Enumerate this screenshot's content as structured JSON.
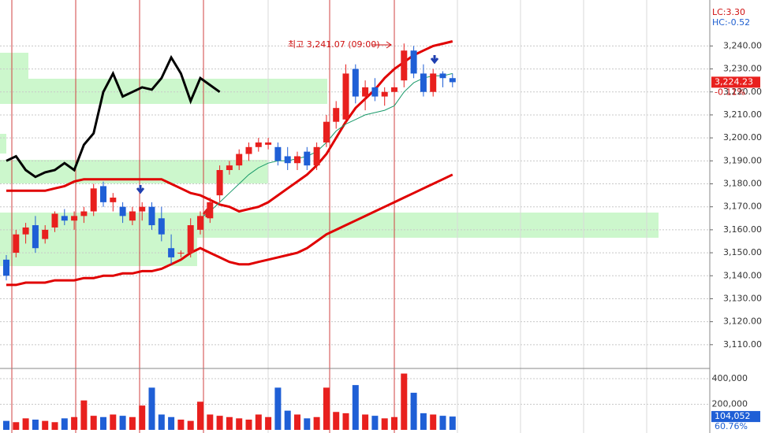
{
  "chart_data": {
    "type": "candlestick",
    "annotation": "최고 3,241.07 (09:00)",
    "lc_label": "LC:3.30",
    "hc_label": "HC:-0.52",
    "last_price": {
      "value": 3224.23,
      "label": "3,224.23"
    },
    "change_label": "-0.11%",
    "up_color": "#e8201e",
    "down_color": "#1f5fd6",
    "grid": true,
    "ylim": [
      3100,
      3260
    ],
    "yticks": [
      {
        "value": 3240,
        "label": "3,240.00"
      },
      {
        "value": 3230,
        "label": "3,230.00"
      },
      {
        "value": 3220,
        "label": "3,220.00"
      },
      {
        "value": 3210,
        "label": "3,210.00"
      },
      {
        "value": 3200,
        "label": "3,200.00"
      },
      {
        "value": 3190,
        "label": "3,190.00"
      },
      {
        "value": 3180,
        "label": "3,180.00"
      },
      {
        "value": 3170,
        "label": "3,170.00"
      },
      {
        "value": 3160,
        "label": "3,160.00"
      },
      {
        "value": 3150,
        "label": "3,150.00"
      },
      {
        "value": 3140,
        "label": "3,140.00"
      },
      {
        "value": 3130,
        "label": "3,130.00"
      },
      {
        "value": 3120,
        "label": "3,120.00"
      },
      {
        "value": 3110,
        "label": "3,110.00"
      }
    ],
    "open": [
      3147,
      3150,
      3158,
      3162,
      3156,
      3161,
      3166,
      3164,
      3166,
      3168,
      3179,
      3172,
      3170,
      3164,
      3168,
      3170,
      3165,
      3152,
      3150,
      3150,
      3160,
      3165,
      3175,
      3186,
      3188,
      3193,
      3196,
      3197,
      3196,
      3192,
      3189,
      3194,
      3188,
      3198,
      3207,
      3208,
      3230,
      3218,
      3222,
      3218,
      3220,
      3225,
      3238,
      3228,
      3220,
      3228,
      3226
    ],
    "high": [
      3149,
      3160,
      3163,
      3166,
      3162,
      3168,
      3169,
      3168,
      3170,
      3180,
      3181,
      3176,
      3172,
      3170,
      3172,
      3172,
      3170,
      3158,
      3151,
      3165,
      3168,
      3174,
      3188,
      3190,
      3195,
      3198,
      3200,
      3200,
      3198,
      3196,
      3194,
      3196,
      3198,
      3210,
      3216,
      3232,
      3232,
      3225,
      3226,
      3222,
      3224,
      3241.07,
      3240,
      3232,
      3230,
      3229,
      3228
    ],
    "low": [
      3138,
      3148,
      3154,
      3150,
      3154,
      3159,
      3162,
      3160,
      3163,
      3166,
      3170,
      3168,
      3163,
      3162,
      3164,
      3160,
      3155,
      3145,
      3148,
      3148,
      3158,
      3163,
      3172,
      3184,
      3186,
      3190,
      3194,
      3195,
      3188,
      3186,
      3186,
      3186,
      3186,
      3196,
      3204,
      3206,
      3215,
      3212,
      3216,
      3214,
      3218,
      3222,
      3226,
      3218,
      3218,
      3222,
      3222
    ],
    "close": [
      3140,
      3158,
      3161,
      3152,
      3160,
      3167,
      3164,
      3166,
      3168,
      3178,
      3172,
      3174,
      3166,
      3168,
      3170,
      3162,
      3158,
      3148,
      3150,
      3162,
      3166,
      3172,
      3186,
      3188,
      3193,
      3196,
      3198,
      3198,
      3190,
      3189,
      3192,
      3188,
      3196,
      3207,
      3213,
      3228,
      3218,
      3222,
      3218,
      3220,
      3222,
      3238,
      3228,
      3220,
      3228,
      3226,
      3224.23
    ],
    "lines": [
      {
        "color": "#e00000",
        "width": 3,
        "values": [
          3177,
          3177,
          3177,
          3177,
          3177,
          3178,
          3179,
          3181,
          3182,
          3182,
          3182,
          3182,
          3182,
          3182,
          3182,
          3182,
          3182,
          3180,
          3178,
          3176,
          3175,
          3173,
          3171,
          3170,
          3168,
          3169,
          3170,
          3172,
          3175,
          3178,
          3181,
          3184,
          3188,
          3193,
          3200,
          3207,
          3213,
          3217,
          3221,
          3226,
          3230,
          3233,
          3236,
          3238,
          3240,
          3241,
          3242
        ]
      },
      {
        "color": "#e00000",
        "width": 3,
        "values": [
          3136,
          3136,
          3137,
          3137,
          3137,
          3138,
          3138,
          3138,
          3139,
          3139,
          3140,
          3140,
          3141,
          3141,
          3142,
          3142,
          3143,
          3145,
          3147,
          3150,
          3152,
          3150,
          3148,
          3146,
          3145,
          3145,
          3146,
          3147,
          3148,
          3149,
          3150,
          3152,
          3155,
          3158,
          3160,
          3162,
          3164,
          3166,
          3168,
          3170,
          3172,
          3174,
          3176,
          3178,
          3180,
          3182,
          3184
        ]
      },
      {
        "color": "#000000",
        "width": 3,
        "values": [
          3190,
          3192,
          3186,
          3183,
          3185,
          3186,
          3189,
          3186,
          3197,
          3202,
          3220,
          3228,
          3218,
          3220,
          3222,
          3221,
          3226,
          3235,
          3228,
          3216,
          3226,
          3223,
          3220,
          null,
          null,
          null,
          null,
          null,
          null,
          null,
          null,
          null,
          null,
          null,
          null,
          null,
          null,
          null,
          null,
          null,
          null,
          null,
          null,
          null,
          null,
          null,
          null
        ]
      },
      {
        "color": "#1a9a6a",
        "width": 1,
        "values": [
          null,
          null,
          null,
          null,
          null,
          null,
          null,
          null,
          null,
          null,
          null,
          null,
          null,
          null,
          null,
          null,
          null,
          null,
          null,
          null,
          3165,
          3168,
          3172,
          3176,
          3180,
          3184,
          3187,
          3189,
          3190,
          3190,
          3191,
          3192,
          3194,
          3198,
          3203,
          3206,
          3208,
          3210,
          3211,
          3212,
          3214,
          3220,
          3224,
          3226,
          3227,
          3227,
          3228
        ]
      }
    ],
    "volume": {
      "values": [
        70000,
        60000,
        90000,
        80000,
        70000,
        60000,
        90000,
        100000,
        230000,
        110000,
        100000,
        120000,
        110000,
        100000,
        190000,
        330000,
        120000,
        100000,
        80000,
        70000,
        220000,
        120000,
        110000,
        100000,
        90000,
        80000,
        120000,
        100000,
        330000,
        150000,
        120000,
        90000,
        100000,
        330000,
        140000,
        130000,
        350000,
        120000,
        110000,
        90000,
        100000,
        440000,
        290000,
        130000,
        120000,
        110000,
        104052
      ],
      "ylim": [
        0,
        480000
      ],
      "yticks": [
        {
          "value": 400000,
          "label": "400,000"
        },
        {
          "value": 200000,
          "label": "200,000"
        }
      ],
      "last": {
        "value": 104052,
        "label": "104,052"
      },
      "pct_label": "60.76%"
    }
  }
}
